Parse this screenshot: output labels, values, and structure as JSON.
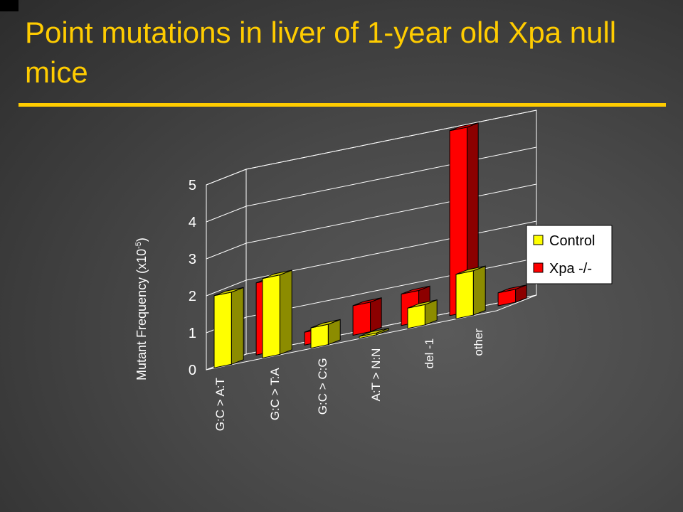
{
  "slide": {
    "title": "Point mutations in liver of 1-year old Xpa null mice"
  },
  "chart_data": {
    "type": "bar",
    "view": "3d-clustered-column",
    "categories": [
      "G:C > A:T",
      "G:C > T:A",
      "G:C > C:G",
      "A:T > N:N",
      "del -1",
      "other"
    ],
    "series": [
      {
        "name": "Control",
        "color": "#ffff00",
        "values": [
          1.95,
          2.15,
          0.55,
          0.05,
          0.55,
          1.2
        ]
      },
      {
        "name": "Xpa -/-",
        "color": "#ff0000",
        "values": [
          1.95,
          0.35,
          0.8,
          0.85,
          5.0,
          0.35
        ]
      }
    ],
    "ylabel_main": "Mutant Frequency (x10",
    "ylabel_sup": "-5",
    "ylabel_close": ")",
    "yticks": [
      "0",
      "1",
      "2",
      "3",
      "4",
      "5"
    ],
    "ylim": [
      0,
      5
    ],
    "grid": true,
    "legend_position": "right"
  }
}
